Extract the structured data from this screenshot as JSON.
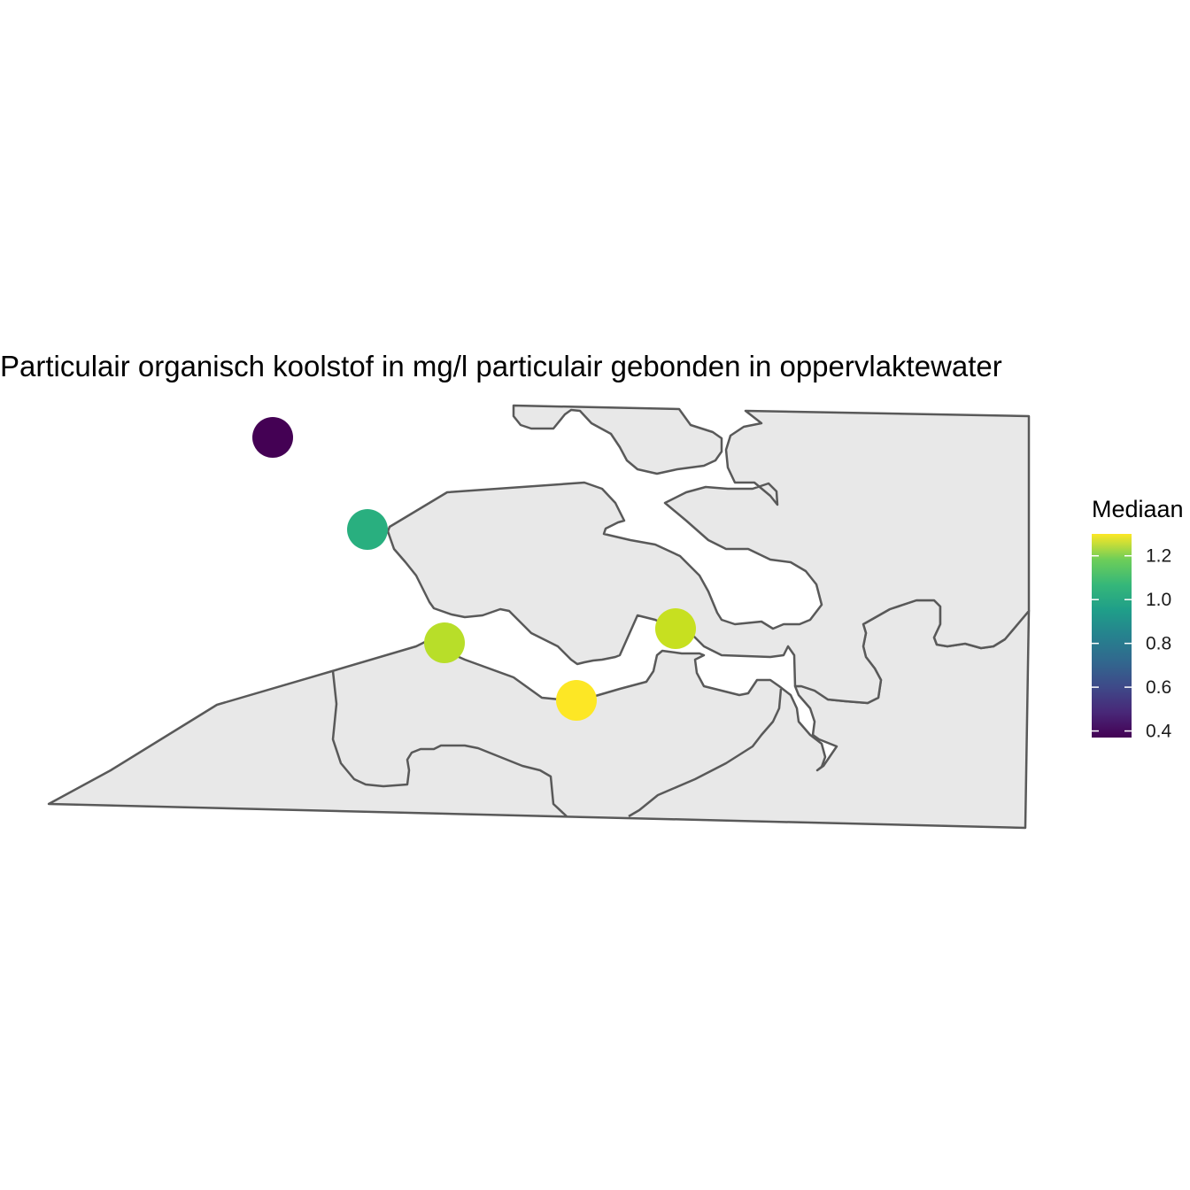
{
  "map": {
    "title": "Particulair organisch koolstof in mg/l particulair gebonden in oppervlaktewater",
    "background": "#ffffff",
    "land_fill": "#e8e8e8",
    "land_stroke": "#595959"
  },
  "legend": {
    "title": "Mediaan",
    "ticks": [
      "0.4",
      "0.6",
      "0.8",
      "1.0",
      "1.2"
    ],
    "tick_values": [
      0.4,
      0.6,
      0.8,
      1.0,
      1.2
    ],
    "range": [
      0.37,
      1.3
    ],
    "palette": "viridis"
  },
  "stations": [
    {
      "value": 0.37,
      "color": "#440154"
    },
    {
      "value": 0.92,
      "color": "#29af7f"
    },
    {
      "value": 1.2,
      "color": "#b8de29"
    },
    {
      "value": 1.29,
      "color": "#fde725"
    },
    {
      "value": 1.23,
      "color": "#c7e020"
    }
  ]
}
